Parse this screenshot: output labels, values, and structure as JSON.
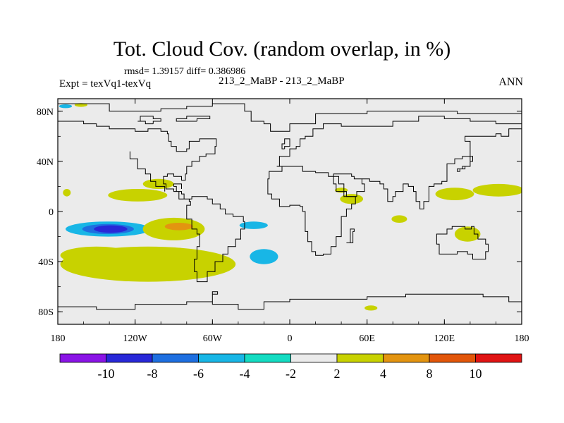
{
  "title": "Tot. Cloud Cov. (random overlap, in %)",
  "stats": "rmsd= 1.39157 diff= 0.386986",
  "experiment": "Expt = texVq1-texVq",
  "case_label": "213_2_MaBP - 213_2_MaBP",
  "season": "ANN",
  "chart_data": {
    "type": "contour-map",
    "x_range": [
      -180,
      180
    ],
    "y_range": [
      -90,
      90
    ],
    "x_ticks": [
      {
        "v": -180,
        "label": "180"
      },
      {
        "v": -120,
        "label": "120W"
      },
      {
        "v": -60,
        "label": "60W"
      },
      {
        "v": 0,
        "label": "0"
      },
      {
        "v": 60,
        "label": "60E"
      },
      {
        "v": 120,
        "label": "120E"
      },
      {
        "v": 180,
        "label": "180"
      }
    ],
    "y_ticks": [
      {
        "v": 80,
        "label": "80N"
      },
      {
        "v": 40,
        "label": "40N"
      },
      {
        "v": 0,
        "label": "0"
      },
      {
        "v": -40,
        "label": "40S"
      },
      {
        "v": -80,
        "label": "80S"
      }
    ],
    "colorbar": {
      "colors": [
        "#8a14e6",
        "#2828d8",
        "#1e6fe0",
        "#18b6e6",
        "#14dcc2",
        "#ebebeb",
        "#c8d200",
        "#e39410",
        "#e2560a",
        "#e01414"
      ],
      "boundaries": [
        {
          "v": -10,
          "label": "-10"
        },
        {
          "v": -8,
          "label": "-8"
        },
        {
          "v": -6,
          "label": "-6"
        },
        {
          "v": -4,
          "label": "-4"
        },
        {
          "v": -2,
          "label": "-2"
        },
        {
          "v": 2,
          "label": "2"
        },
        {
          "v": 4,
          "label": "4"
        },
        {
          "v": 8,
          "label": "8"
        },
        {
          "v": 10,
          "label": "10"
        }
      ]
    },
    "anomalies": [
      {
        "lon": -118,
        "lat": 13,
        "rlon": 23,
        "rlat": 5,
        "level": 2,
        "name": "yellow-npac"
      },
      {
        "lon": -102,
        "lat": 22,
        "rlon": 12,
        "rlat": 4,
        "level": 2,
        "name": "yellow-npac-east"
      },
      {
        "lon": -141,
        "lat": -14,
        "rlon": 33,
        "rlat": 6,
        "level": -4,
        "name": "blue-spac-outer"
      },
      {
        "lon": -141,
        "lat": -14,
        "rlon": 20,
        "rlat": 4,
        "level": -6,
        "name": "blue-spac-mid"
      },
      {
        "lon": -139,
        "lat": -14,
        "rlon": 13,
        "rlat": 3,
        "level": -8,
        "name": "blue-spac-core"
      },
      {
        "lon": -90,
        "lat": -14,
        "rlon": 24,
        "rlat": 9,
        "level": 2,
        "name": "yellow-spac-east"
      },
      {
        "lon": -86,
        "lat": -12,
        "rlon": 11,
        "rlat": 3,
        "level": 4,
        "name": "orange-spac"
      },
      {
        "lon": -110,
        "lat": -42,
        "rlon": 68,
        "rlat": 14,
        "level": 2,
        "name": "yellow-souther-ocean"
      },
      {
        "lon": -150,
        "lat": -35,
        "rlon": 28,
        "rlat": 7,
        "level": 2,
        "name": "yellow-south-west"
      },
      {
        "lon": -20,
        "lat": -36,
        "rlon": 11,
        "rlat": 6,
        "level": -4,
        "name": "cyan-satl"
      },
      {
        "lon": -28,
        "lat": -11,
        "rlon": 11,
        "rlat": 3,
        "level": -4,
        "name": "cyan-eq-atl"
      },
      {
        "lon": 128,
        "lat": 14,
        "rlon": 15,
        "rlat": 5,
        "level": 2,
        "name": "yellow-wpac"
      },
      {
        "lon": 162,
        "lat": 17,
        "rlon": 20,
        "rlat": 5,
        "level": 2,
        "name": "yellow-cpac"
      },
      {
        "lon": 85,
        "lat": -6,
        "rlon": 6,
        "rlat": 3,
        "level": 2,
        "name": "yellow-indian"
      },
      {
        "lon": 48,
        "lat": 10,
        "rlon": 9,
        "rlat": 4,
        "level": 2,
        "name": "yellow-arabia"
      },
      {
        "lon": 40,
        "lat": 17,
        "rlon": 5,
        "rlat": 2,
        "level": 2,
        "name": "yellow-red-sea"
      },
      {
        "lon": 138,
        "lat": -18,
        "rlon": 10,
        "rlat": 6,
        "level": 2,
        "name": "yellow-aus-east"
      },
      {
        "lon": 63,
        "lat": -77,
        "rlon": 5,
        "rlat": 2,
        "level": 2,
        "name": "yellow-antarctic"
      },
      {
        "lon": -173,
        "lat": 15,
        "rlon": 3,
        "rlat": 3,
        "level": 2,
        "name": "yellow-dateline"
      },
      {
        "lon": -174,
        "lat": 84,
        "rlon": 5,
        "rlat": 1.5,
        "level": -4,
        "name": "cyan-arctic"
      },
      {
        "lon": -162,
        "lat": 85,
        "rlon": 5,
        "rlat": 1.5,
        "level": 2,
        "name": "yellow-arctic"
      }
    ],
    "coastlines": [
      [
        [
          -180,
          86
        ],
        [
          -140,
          86
        ],
        [
          -140,
          80
        ],
        [
          -100,
          80
        ],
        [
          -100,
          82
        ],
        [
          -80,
          82
        ],
        [
          -80,
          84
        ],
        [
          -60,
          84
        ],
        [
          -60,
          86
        ],
        [
          -40,
          86
        ],
        [
          -35,
          80
        ],
        [
          -30,
          72
        ],
        [
          -20,
          70
        ],
        [
          -15,
          64
        ],
        [
          0,
          70
        ],
        [
          20,
          78
        ],
        [
          40,
          78
        ],
        [
          60,
          80
        ],
        [
          100,
          80
        ],
        [
          130,
          78
        ],
        [
          180,
          86
        ]
      ],
      [
        [
          -180,
          72
        ],
        [
          -166,
          72
        ],
        [
          -160,
          70
        ],
        [
          -150,
          68
        ],
        [
          -140,
          66
        ],
        [
          -130,
          66
        ],
        [
          -120,
          64
        ],
        [
          -110,
          66
        ],
        [
          -100,
          64
        ],
        [
          -95,
          62
        ],
        [
          -94,
          56
        ],
        [
          -92,
          52
        ],
        [
          -88,
          48
        ],
        [
          -80,
          50
        ],
        [
          -78,
          56
        ],
        [
          -70,
          58
        ],
        [
          -63,
          58
        ],
        [
          -57,
          52
        ],
        [
          -58,
          46
        ],
        [
          -65,
          44
        ],
        [
          -70,
          40
        ],
        [
          -76,
          36
        ],
        [
          -80,
          30
        ],
        [
          -81,
          25
        ],
        [
          -84,
          28
        ],
        [
          -90,
          30
        ],
        [
          -95,
          28
        ],
        [
          -98,
          22
        ],
        [
          -96,
          18
        ],
        [
          -90,
          16
        ],
        [
          -84,
          14
        ],
        [
          -82,
          10
        ],
        [
          -78,
          8
        ],
        [
          -77,
          5
        ],
        [
          -80,
          0
        ],
        [
          -80,
          -6
        ],
        [
          -76,
          -14
        ],
        [
          -72,
          -18
        ],
        [
          -70,
          -28
        ],
        [
          -72,
          -38
        ],
        [
          -74,
          -48
        ],
        [
          -72,
          -56
        ],
        [
          -66,
          -56
        ],
        [
          -64,
          -48
        ],
        [
          -58,
          -40
        ],
        [
          -52,
          -34
        ],
        [
          -48,
          -28
        ],
        [
          -42,
          -22
        ],
        [
          -38,
          -14
        ],
        [
          -35,
          -8
        ],
        [
          -36,
          -4
        ],
        [
          -44,
          -2
        ],
        [
          -50,
          2
        ],
        [
          -54,
          6
        ],
        [
          -60,
          10
        ],
        [
          -64,
          12
        ],
        [
          -72,
          12
        ],
        [
          -76,
          10
        ],
        [
          -80,
          10
        ],
        [
          -86,
          16
        ],
        [
          -88,
          20
        ],
        [
          -90,
          22
        ],
        [
          -86,
          22
        ],
        [
          -84,
          18
        ]
      ],
      [
        [
          -124,
          48
        ],
        [
          -124,
          42
        ],
        [
          -118,
          34
        ],
        [
          -112,
          30
        ],
        [
          -108,
          24
        ],
        [
          -104,
          20
        ],
        [
          -97,
          16
        ]
      ],
      [
        [
          -10,
          36
        ],
        [
          -8,
          44
        ],
        [
          -2,
          44
        ],
        [
          0,
          50
        ],
        [
          5,
          52
        ],
        [
          8,
          58
        ],
        [
          12,
          60
        ],
        [
          18,
          66
        ],
        [
          26,
          70
        ],
        [
          40,
          68
        ],
        [
          50,
          68
        ],
        [
          60,
          68
        ],
        [
          80,
          72
        ],
        [
          100,
          76
        ],
        [
          120,
          74
        ],
        [
          140,
          72
        ],
        [
          160,
          70
        ],
        [
          180,
          68
        ]
      ],
      [
        [
          -10,
          36
        ],
        [
          -6,
          32
        ],
        [
          -16,
          26
        ],
        [
          -17,
          20
        ],
        [
          -17,
          14
        ],
        [
          -14,
          10
        ],
        [
          -8,
          4
        ],
        [
          0,
          5
        ],
        [
          8,
          4
        ],
        [
          10,
          0
        ],
        [
          12,
          -6
        ],
        [
          12,
          -16
        ],
        [
          14,
          -24
        ],
        [
          17,
          -32
        ],
        [
          20,
          -35
        ],
        [
          26,
          -34
        ],
        [
          32,
          -28
        ],
        [
          36,
          -20
        ],
        [
          40,
          -14
        ],
        [
          40,
          -4
        ],
        [
          44,
          2
        ],
        [
          48,
          6
        ],
        [
          51,
          12
        ],
        [
          44,
          12
        ],
        [
          42,
          16
        ],
        [
          36,
          22
        ],
        [
          34,
          28
        ],
        [
          30,
          31
        ],
        [
          20,
          32
        ],
        [
          10,
          36
        ],
        [
          -2,
          36
        ],
        [
          -10,
          36
        ]
      ],
      [
        [
          34,
          28
        ],
        [
          38,
          22
        ],
        [
          42,
          16
        ],
        [
          44,
          12
        ],
        [
          52,
          16
        ],
        [
          58,
          22
        ],
        [
          56,
          26
        ],
        [
          50,
          28
        ],
        [
          48,
          30
        ],
        [
          40,
          30
        ],
        [
          34,
          28
        ]
      ],
      [
        [
          56,
          26
        ],
        [
          62,
          24
        ],
        [
          66,
          24
        ],
        [
          70,
          22
        ],
        [
          73,
          18
        ],
        [
          76,
          8
        ],
        [
          80,
          12
        ],
        [
          82,
          16
        ],
        [
          88,
          22
        ],
        [
          92,
          20
        ],
        [
          96,
          16
        ],
        [
          98,
          8
        ],
        [
          101,
          2
        ],
        [
          104,
          8
        ],
        [
          108,
          12
        ],
        [
          108,
          20
        ],
        [
          112,
          22
        ],
        [
          118,
          24
        ],
        [
          122,
          30
        ],
        [
          122,
          38
        ],
        [
          126,
          38
        ],
        [
          128,
          42
        ],
        [
          134,
          44
        ],
        [
          140,
          50
        ],
        [
          140,
          56
        ],
        [
          136,
          60
        ],
        [
          150,
          60
        ],
        [
          160,
          62
        ],
        [
          164,
          60
        ],
        [
          170,
          66
        ],
        [
          178,
          66
        ],
        [
          180,
          64
        ]
      ],
      [
        [
          114,
          -22
        ],
        [
          114,
          -26
        ],
        [
          116,
          -34
        ],
        [
          122,
          -34
        ],
        [
          130,
          -32
        ],
        [
          138,
          -34
        ],
        [
          142,
          -38
        ],
        [
          148,
          -38
        ],
        [
          152,
          -32
        ],
        [
          154,
          -26
        ],
        [
          152,
          -22
        ],
        [
          146,
          -18
        ],
        [
          143,
          -12
        ],
        [
          141,
          -14
        ],
        [
          136,
          -12
        ],
        [
          132,
          -12
        ],
        [
          126,
          -14
        ],
        [
          122,
          -18
        ],
        [
          114,
          -22
        ]
      ],
      [
        [
          -180,
          -76
        ],
        [
          -150,
          -78
        ],
        [
          -120,
          -74
        ],
        [
          -100,
          -74
        ],
        [
          -80,
          -72
        ],
        [
          -60,
          -66
        ],
        [
          -56,
          -64
        ],
        [
          -60,
          -74
        ],
        [
          -40,
          -78
        ],
        [
          -20,
          -72
        ],
        [
          0,
          -70
        ],
        [
          30,
          -70
        ],
        [
          60,
          -68
        ],
        [
          90,
          -66
        ],
        [
          120,
          -66
        ],
        [
          150,
          -68
        ],
        [
          170,
          -72
        ],
        [
          180,
          -76
        ]
      ],
      [
        [
          140,
          36
        ],
        [
          134,
          34
        ],
        [
          130,
          32
        ],
        [
          132,
          34
        ],
        [
          136,
          36
        ],
        [
          140,
          40
        ],
        [
          142,
          44
        ],
        [
          140,
          36
        ]
      ],
      [
        [
          -4,
          50
        ],
        [
          -6,
          54
        ],
        [
          -4,
          58
        ],
        [
          0,
          52
        ],
        [
          -4,
          50
        ]
      ],
      [
        [
          -72,
          72
        ],
        [
          -80,
          72
        ],
        [
          -88,
          74
        ],
        [
          -80,
          76
        ],
        [
          -70,
          76
        ],
        [
          -62,
          74
        ],
        [
          -72,
          72
        ]
      ],
      [
        [
          44,
          -25
        ],
        [
          49,
          -16
        ],
        [
          50,
          -14
        ],
        [
          47,
          -25
        ],
        [
          44,
          -25
        ]
      ],
      [
        [
          -106,
          70
        ],
        [
          -112,
          72
        ],
        [
          -118,
          72
        ],
        [
          -116,
          76
        ],
        [
          -106,
          74
        ],
        [
          -100,
          72
        ],
        [
          -106,
          70
        ]
      ]
    ]
  }
}
